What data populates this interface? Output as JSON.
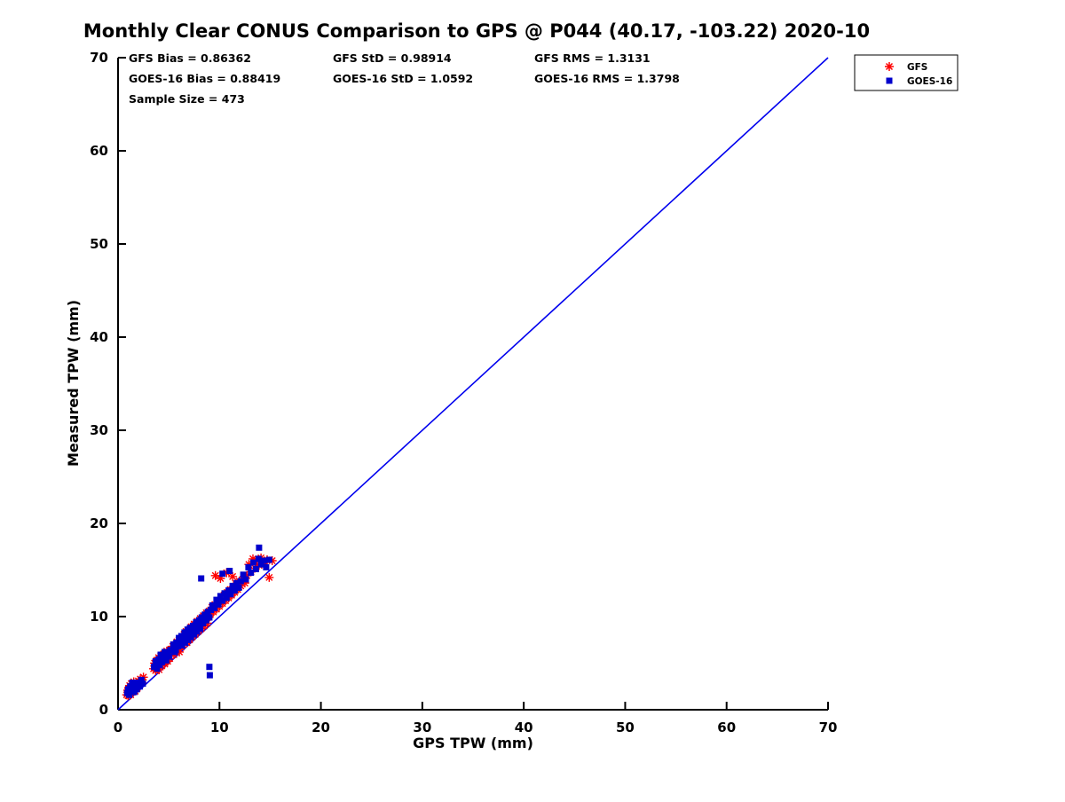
{
  "chart_data": {
    "type": "scatter",
    "title": "Monthly Clear CONUS Comparison to GPS @ P044 (40.17, -103.22) 2020-10",
    "xlabel": "GPS TPW (mm)",
    "ylabel": "Measured TPW (mm)",
    "xlim": [
      0,
      70
    ],
    "ylim": [
      0,
      70
    ],
    "xticks": [
      0,
      10,
      20,
      30,
      40,
      50,
      60,
      70
    ],
    "yticks": [
      0,
      10,
      20,
      30,
      40,
      50,
      60,
      70
    ],
    "grid": false,
    "legend_position": "top-right",
    "stats_rows": [
      [
        "GFS Bias = 0.86362",
        "GFS StD = 0.98914",
        "GFS RMS = 1.3131"
      ],
      [
        "GOES-16 Bias = 0.88419",
        "GOES-16 StD = 1.0592",
        "GOES-16 RMS = 1.3798"
      ],
      [
        "Sample Size = 473"
      ]
    ],
    "sample_size": 473,
    "reference_line": {
      "from": [
        0,
        0
      ],
      "to": [
        70,
        70
      ],
      "color": "#0000ee"
    },
    "series": [
      {
        "name": "GFS",
        "marker": "asterisk",
        "color": "#ff0000",
        "points": [
          [
            0.85,
            1.6
          ],
          [
            0.95,
            2.1
          ],
          [
            1.0,
            1.5
          ],
          [
            1.05,
            2.3
          ],
          [
            1.1,
            1.8
          ],
          [
            1.15,
            2.6
          ],
          [
            1.2,
            2.0
          ],
          [
            1.25,
            1.6
          ],
          [
            1.3,
            2.8
          ],
          [
            1.35,
            2.2
          ],
          [
            1.4,
            1.9
          ],
          [
            1.45,
            2.5
          ],
          [
            1.5,
            2.1
          ],
          [
            1.55,
            3.0
          ],
          [
            1.6,
            2.4
          ],
          [
            1.7,
            2.0
          ],
          [
            1.8,
            2.7
          ],
          [
            1.9,
            2.3
          ],
          [
            2.0,
            3.1
          ],
          [
            2.1,
            2.6
          ],
          [
            2.2,
            3.3
          ],
          [
            2.35,
            2.9
          ],
          [
            2.5,
            3.5
          ],
          [
            3.5,
            4.4
          ],
          [
            3.6,
            5.0
          ],
          [
            3.7,
            4.2
          ],
          [
            3.8,
            5.3
          ],
          [
            3.9,
            4.6
          ],
          [
            4.0,
            5.6
          ],
          [
            4.05,
            4.3
          ],
          [
            4.1,
            5.0
          ],
          [
            4.2,
            5.8
          ],
          [
            4.3,
            4.7
          ],
          [
            4.4,
            5.4
          ],
          [
            4.5,
            6.0
          ],
          [
            4.6,
            4.9
          ],
          [
            4.7,
            5.7
          ],
          [
            4.8,
            6.3
          ],
          [
            4.9,
            5.2
          ],
          [
            5.0,
            6.0
          ],
          [
            5.1,
            5.5
          ],
          [
            5.2,
            6.5
          ],
          [
            5.3,
            6.1
          ],
          [
            5.4,
            6.8
          ],
          [
            5.5,
            5.9
          ],
          [
            5.6,
            7.0
          ],
          [
            5.7,
            6.3
          ],
          [
            5.8,
            7.3
          ],
          [
            5.9,
            6.6
          ],
          [
            6.0,
            7.5
          ],
          [
            6.05,
            6.2
          ],
          [
            6.1,
            7.1
          ],
          [
            6.2,
            6.7
          ],
          [
            6.3,
            7.8
          ],
          [
            6.4,
            7.0
          ],
          [
            6.5,
            8.1
          ],
          [
            6.6,
            7.4
          ],
          [
            6.7,
            8.4
          ],
          [
            6.8,
            7.2
          ],
          [
            6.9,
            8.0
          ],
          [
            7.0,
            8.6
          ],
          [
            7.05,
            7.5
          ],
          [
            7.1,
            8.2
          ],
          [
            7.2,
            8.9
          ],
          [
            7.3,
            7.8
          ],
          [
            7.4,
            8.5
          ],
          [
            7.5,
            9.2
          ],
          [
            7.6,
            8.1
          ],
          [
            7.7,
            8.8
          ],
          [
            7.8,
            9.5
          ],
          [
            7.9,
            8.4
          ],
          [
            8.0,
            9.1
          ],
          [
            8.1,
            9.8
          ],
          [
            8.2,
            8.7
          ],
          [
            8.3,
            9.4
          ],
          [
            8.4,
            10.1
          ],
          [
            8.5,
            9.0
          ],
          [
            8.6,
            9.7
          ],
          [
            8.7,
            10.4
          ],
          [
            8.8,
            9.3
          ],
          [
            8.9,
            10.0
          ],
          [
            9.0,
            10.6
          ],
          [
            9.1,
            10.2
          ],
          [
            9.25,
            11.0
          ],
          [
            9.4,
            10.5
          ],
          [
            9.55,
            11.3
          ],
          [
            9.7,
            10.8
          ],
          [
            9.85,
            11.6
          ],
          [
            10.0,
            11.1
          ],
          [
            10.15,
            12.0
          ],
          [
            10.3,
            11.4
          ],
          [
            10.45,
            12.3
          ],
          [
            10.6,
            11.7
          ],
          [
            10.75,
            12.6
          ],
          [
            10.9,
            12.0
          ],
          [
            11.05,
            12.9
          ],
          [
            11.2,
            12.3
          ],
          [
            11.35,
            13.2
          ],
          [
            11.5,
            12.6
          ],
          [
            11.65,
            13.5
          ],
          [
            11.8,
            12.9
          ],
          [
            11.95,
            13.8
          ],
          [
            9.6,
            14.4
          ],
          [
            10.1,
            14.1
          ],
          [
            10.7,
            14.7
          ],
          [
            11.3,
            14.3
          ],
          [
            12.1,
            13.3
          ],
          [
            12.3,
            14.0
          ],
          [
            12.5,
            13.6
          ],
          [
            12.7,
            14.4
          ],
          [
            12.9,
            15.6
          ],
          [
            13.1,
            14.8
          ],
          [
            13.3,
            16.2
          ],
          [
            13.5,
            15.2
          ],
          [
            13.7,
            16.0
          ],
          [
            13.9,
            15.5
          ],
          [
            14.1,
            16.3
          ],
          [
            14.4,
            15.8
          ],
          [
            14.7,
            16.1
          ],
          [
            14.9,
            14.2
          ],
          [
            15.2,
            16.0
          ]
        ]
      },
      {
        "name": "GOES-16",
        "marker": "square",
        "color": "#0000cc",
        "points": [
          [
            0.9,
            1.8
          ],
          [
            1.0,
            2.2
          ],
          [
            1.1,
            1.6
          ],
          [
            1.2,
            2.5
          ],
          [
            1.3,
            2.0
          ],
          [
            1.4,
            2.9
          ],
          [
            1.5,
            2.3
          ],
          [
            1.6,
            1.9
          ],
          [
            1.7,
            2.6
          ],
          [
            1.85,
            2.2
          ],
          [
            2.0,
            2.9
          ],
          [
            2.15,
            2.5
          ],
          [
            2.3,
            3.2
          ],
          [
            2.45,
            2.8
          ],
          [
            3.55,
            4.6
          ],
          [
            3.7,
            5.2
          ],
          [
            3.85,
            4.4
          ],
          [
            4.0,
            5.4
          ],
          [
            4.1,
            4.8
          ],
          [
            4.2,
            5.9
          ],
          [
            4.35,
            5.1
          ],
          [
            4.5,
            5.6
          ],
          [
            4.6,
            6.2
          ],
          [
            4.75,
            5.3
          ],
          [
            4.9,
            6.1
          ],
          [
            5.05,
            5.7
          ],
          [
            5.15,
            6.4
          ],
          [
            5.3,
            6.4
          ],
          [
            5.45,
            7.0
          ],
          [
            5.6,
            6.2
          ],
          [
            5.75,
            7.2
          ],
          [
            5.9,
            6.8
          ],
          [
            6.0,
            7.7
          ],
          [
            6.1,
            6.9
          ],
          [
            6.25,
            7.9
          ],
          [
            6.4,
            7.3
          ],
          [
            6.55,
            8.3
          ],
          [
            6.7,
            7.6
          ],
          [
            6.85,
            8.6
          ],
          [
            7.0,
            7.9
          ],
          [
            7.1,
            8.8
          ],
          [
            7.25,
            8.2
          ],
          [
            7.4,
            9.0
          ],
          [
            7.55,
            8.5
          ],
          [
            7.7,
            9.4
          ],
          [
            7.85,
            8.8
          ],
          [
            8.0,
            9.6
          ],
          [
            8.1,
            9.0
          ],
          [
            8.25,
            9.9
          ],
          [
            8.4,
            9.3
          ],
          [
            8.55,
            10.2
          ],
          [
            8.7,
            9.6
          ],
          [
            8.85,
            10.5
          ],
          [
            9.0,
            9.9
          ],
          [
            6.15,
            7.4
          ],
          [
            6.45,
            7.7
          ],
          [
            6.75,
            8.1
          ],
          [
            7.05,
            8.4
          ],
          [
            7.35,
            8.7
          ],
          [
            7.65,
            9.1
          ],
          [
            7.95,
            9.4
          ],
          [
            8.2,
            9.7
          ],
          [
            8.5,
            9.9
          ],
          [
            8.8,
            10.2
          ],
          [
            6.3,
            6.9
          ],
          [
            6.6,
            7.2
          ],
          [
            6.9,
            7.5
          ],
          [
            7.2,
            7.8
          ],
          [
            7.5,
            8.1
          ],
          [
            7.8,
            8.4
          ],
          [
            8.1,
            8.7
          ],
          [
            5.5,
            6.6
          ],
          [
            5.7,
            6.4
          ],
          [
            5.9,
            7.1
          ],
          [
            9.15,
            10.7
          ],
          [
            9.3,
            11.2
          ],
          [
            9.5,
            10.9
          ],
          [
            9.7,
            11.8
          ],
          [
            9.9,
            11.3
          ],
          [
            10.1,
            12.2
          ],
          [
            10.3,
            11.7
          ],
          [
            10.5,
            12.5
          ],
          [
            10.7,
            12.0
          ],
          [
            10.9,
            12.8
          ],
          [
            11.1,
            12.4
          ],
          [
            11.3,
            13.3
          ],
          [
            11.5,
            12.8
          ],
          [
            11.7,
            13.6
          ],
          [
            11.9,
            13.1
          ],
          [
            10.3,
            14.6
          ],
          [
            11.0,
            14.9
          ],
          [
            12.1,
            13.8
          ],
          [
            12.35,
            14.5
          ],
          [
            12.6,
            14.0
          ],
          [
            12.85,
            15.3
          ],
          [
            13.1,
            14.7
          ],
          [
            13.35,
            15.8
          ],
          [
            13.6,
            15.1
          ],
          [
            13.85,
            16.2
          ],
          [
            14.1,
            15.6
          ],
          [
            14.35,
            16.0
          ],
          [
            14.6,
            15.3
          ],
          [
            13.9,
            17.4
          ],
          [
            14.9,
            16.1
          ],
          [
            8.2,
            14.1
          ],
          [
            9.0,
            4.6
          ],
          [
            9.05,
            3.7
          ]
        ]
      }
    ]
  },
  "legend": {
    "items": [
      {
        "label": "GFS",
        "marker": "asterisk-icon",
        "color": "#ff0000"
      },
      {
        "label": "GOES-16",
        "marker": "square-icon",
        "color": "#0000cc"
      }
    ]
  }
}
